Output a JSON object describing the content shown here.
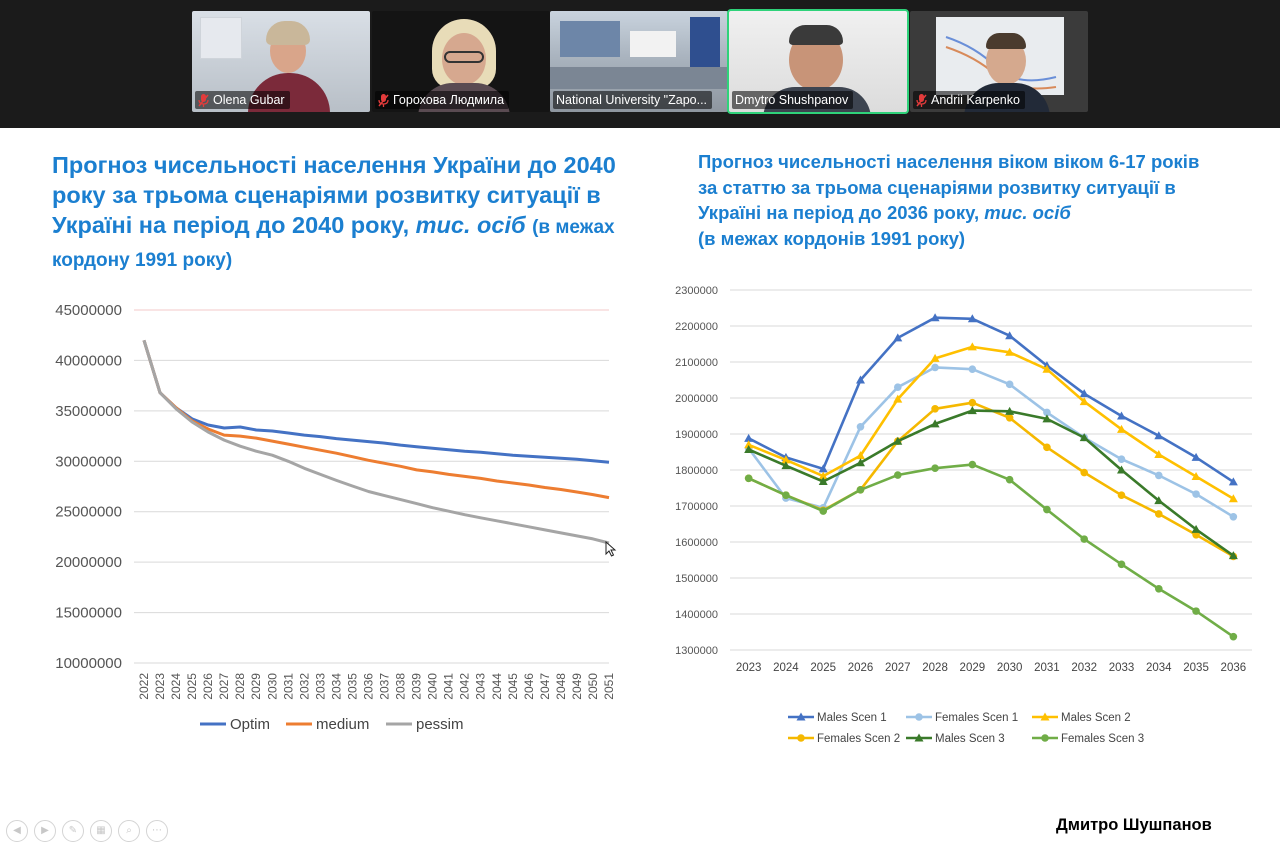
{
  "meeting": {
    "participants": [
      {
        "name": "Olena Gubar",
        "muted": true,
        "active": false
      },
      {
        "name": "Горохова Людмила",
        "muted": true,
        "active": false
      },
      {
        "name": "National University \"Zapo...",
        "muted": false,
        "active": false
      },
      {
        "name": "Dmytro Shushpanov",
        "muted": false,
        "active": true
      },
      {
        "name": "Andrii Karpenko",
        "muted": true,
        "active": false
      }
    ]
  },
  "slide": {
    "left_title": {
      "main": "Прогноз чисельності населення України до 2040 року за трьома сценаріями розвитку ситуації в Україні на період до 2040 року,",
      "unit": "тис. осіб",
      "note": "(в межах кордону 1991 року)"
    },
    "right_title": {
      "main": "Прогноз чисельності населення віком віком 6-17 років за статтю за трьома сценаріями розвитку ситуації в Україні на період до 2036 року,",
      "unit": "тис. осіб",
      "note": "(в межах кордонів 1991 року)"
    },
    "author": "Дмитро Шушпанов"
  },
  "colors": {
    "title_blue": "#1b7fd0",
    "optim": "#4472c4",
    "medium": "#ed7d31",
    "pessim": "#a5a5a5",
    "males1": "#4472c4",
    "females1": "#9dc3e6",
    "males2": "#ffc000",
    "females2": "#f5b800",
    "males3": "#3a7a2a",
    "females3": "#70ad47"
  },
  "chart_data": [
    {
      "type": "line",
      "x": [
        2022,
        2023,
        2024,
        2025,
        2026,
        2027,
        2028,
        2029,
        2030,
        2031,
        2032,
        2033,
        2034,
        2035,
        2036,
        2037,
        2038,
        2039,
        2040,
        2041,
        2042,
        2043,
        2044,
        2045,
        2046,
        2047,
        2048,
        2049,
        2050,
        2051
      ],
      "ylim": [
        10000000,
        45000000
      ],
      "yticks": [
        10000000,
        15000000,
        20000000,
        25000000,
        30000000,
        35000000,
        40000000,
        45000000
      ],
      "grid": true,
      "legend": "bottom",
      "series": [
        {
          "name": "Optim",
          "values": [
            42000000,
            36800000,
            35300000,
            34200000,
            33600000,
            33300000,
            33400000,
            33100000,
            33000000,
            32800000,
            32600000,
            32450000,
            32250000,
            32100000,
            31950000,
            31800000,
            31600000,
            31450000,
            31300000,
            31150000,
            31000000,
            30900000,
            30750000,
            30600000,
            30500000,
            30400000,
            30300000,
            30200000,
            30050000,
            29900000
          ]
        },
        {
          "name": "medium",
          "values": [
            42000000,
            36800000,
            35300000,
            34000000,
            33200000,
            32600000,
            32500000,
            32300000,
            32000000,
            31700000,
            31400000,
            31100000,
            30800000,
            30450000,
            30100000,
            29800000,
            29500000,
            29150000,
            28950000,
            28700000,
            28500000,
            28300000,
            28050000,
            27850000,
            27650000,
            27400000,
            27200000,
            26950000,
            26700000,
            26400000
          ]
        },
        {
          "name": "pessim",
          "values": [
            42000000,
            36800000,
            35200000,
            33900000,
            32900000,
            32100000,
            31500000,
            31000000,
            30600000,
            30000000,
            29300000,
            28700000,
            28100000,
            27550000,
            27000000,
            26600000,
            26200000,
            25800000,
            25400000,
            25050000,
            24700000,
            24400000,
            24100000,
            23800000,
            23500000,
            23200000,
            22900000,
            22600000,
            22300000,
            21900000
          ]
        }
      ]
    },
    {
      "type": "line",
      "x": [
        2023,
        2024,
        2025,
        2026,
        2027,
        2028,
        2029,
        2030,
        2031,
        2032,
        2033,
        2034,
        2035,
        2036
      ],
      "ylim": [
        1300000,
        2300000
      ],
      "yticks": [
        1300000,
        1400000,
        1500000,
        1600000,
        1700000,
        1800000,
        1900000,
        2000000,
        2100000,
        2200000,
        2300000
      ],
      "grid": true,
      "legend": "bottom",
      "series": [
        {
          "name": "Males Scen 1",
          "marker": "triangle",
          "values": [
            1888000,
            1835000,
            1803000,
            2050000,
            2167000,
            2223000,
            2220000,
            2173000,
            2090000,
            2012000,
            1950000,
            1895000,
            1835000,
            1767000
          ]
        },
        {
          "name": "Females Scen 1",
          "marker": "circle",
          "values": [
            1860000,
            1722000,
            1695000,
            1920000,
            2030000,
            2085000,
            2080000,
            2038000,
            1960000,
            1890000,
            1830000,
            1785000,
            1733000,
            1670000
          ]
        },
        {
          "name": "Males Scen 2",
          "marker": "triangle",
          "values": [
            1870000,
            1828000,
            1783000,
            1840000,
            1997000,
            2110000,
            2142000,
            2127000,
            2080000,
            1990000,
            1913000,
            1843000,
            1782000,
            1720000
          ]
        },
        {
          "name": "Females Scen 2",
          "marker": "circle",
          "values": [
            1777000,
            1730000,
            1688000,
            1745000,
            1880000,
            1970000,
            1987000,
            1945000,
            1863000,
            1793000,
            1730000,
            1678000,
            1620000,
            1560000
          ]
        },
        {
          "name": "Males Scen 3",
          "marker": "triangle",
          "values": [
            1857000,
            1812000,
            1768000,
            1820000,
            1880000,
            1928000,
            1965000,
            1963000,
            1942000,
            1890000,
            1800000,
            1715000,
            1635000,
            1562000
          ]
        },
        {
          "name": "Females Scen 3",
          "marker": "circle",
          "values": [
            1777000,
            1730000,
            1686000,
            1745000,
            1786000,
            1805000,
            1815000,
            1773000,
            1690000,
            1608000,
            1538000,
            1470000,
            1408000,
            1337000
          ]
        }
      ]
    }
  ]
}
